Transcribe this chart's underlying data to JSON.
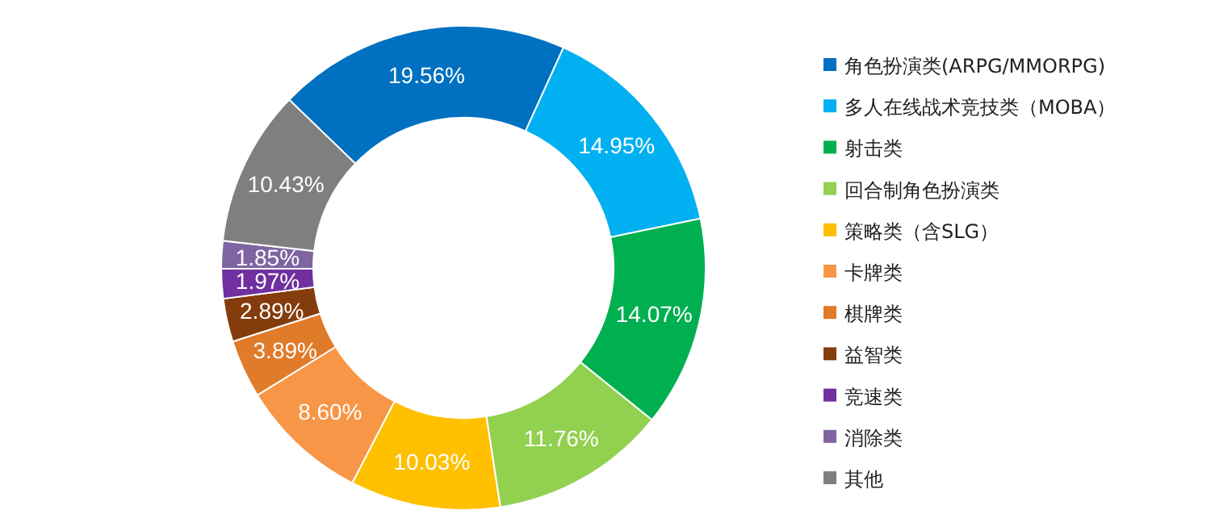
{
  "chart_data": {
    "type": "donut",
    "categories": [
      "角色扮演类(ARPG/MMORPG)",
      "多人在线战术竞技类（MOBA）",
      "射击类",
      "回合制角色扮演类",
      "策略类（含SLG）",
      "卡牌类",
      "棋牌类",
      "益智类",
      "竞速类",
      "消除类",
      "其他"
    ],
    "values": [
      19.56,
      14.95,
      14.07,
      11.76,
      10.03,
      8.6,
      3.89,
      2.89,
      1.97,
      1.85,
      10.43
    ],
    "colors": [
      "#0070c0",
      "#00b0f0",
      "#00b050",
      "#92d050",
      "#ffc000",
      "#f79646",
      "#e07b2a",
      "#843c0c",
      "#7030a0",
      "#8064a2",
      "#7f7f7f"
    ],
    "value_labels": [
      "19.56%",
      "14.95%",
      "14.07%",
      "11.76%",
      "10.03%",
      "8.60%",
      "3.89%",
      "2.89%",
      "1.97%",
      "1.85%",
      "10.43%"
    ],
    "legend": "right"
  }
}
